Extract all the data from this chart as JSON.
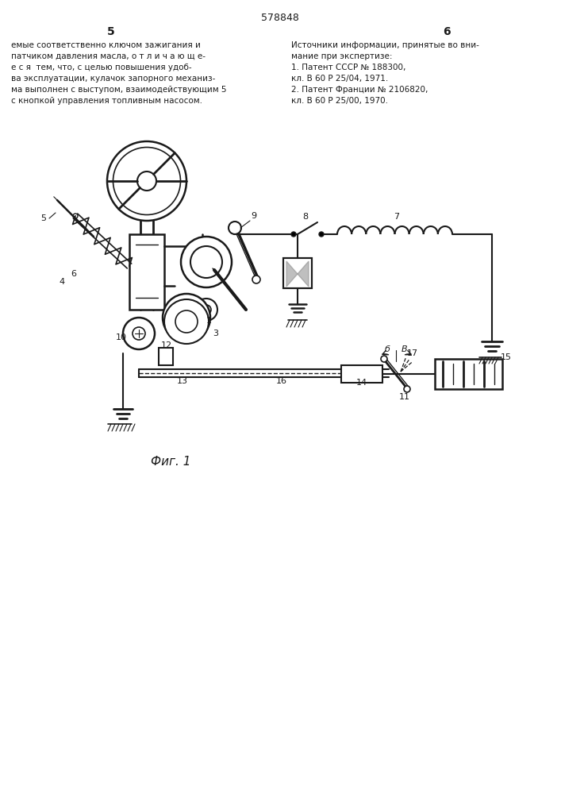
{
  "page_width": 7.07,
  "page_height": 10.0,
  "bg_color": "#ffffff",
  "text_color": "#1a1a1a",
  "line_color": "#1a1a1a",
  "patent_number": "578848",
  "page_left": "5",
  "page_right": "6",
  "left_col_text": [
    "емые соответственно ключом зажигания и",
    "патчиком давления масла, о т л и ч а ю щ е-",
    "е с я  тем, что, с целью повышения удоб-",
    "ва эксплуатации, кулачок запорного механиз-",
    "ма выполнен с выступом, взаимодействующим 5",
    "с кнопкой управления топливным насосом."
  ],
  "right_col_text": [
    "Источники информации, принятые во вни-",
    "мание при экспертизе:",
    "1. Патент СССР № 188300,",
    "кл. В 60 Р 25/04, 1971.",
    "2. Патент Франции № 2106820,",
    "кл. В 60 Р 25/00, 1970."
  ],
  "fig_caption": "Фиг. 1"
}
